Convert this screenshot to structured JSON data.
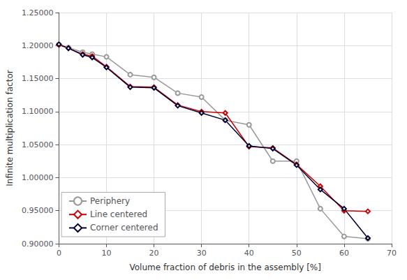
{
  "chart_data": {
    "type": "line",
    "xlabel": "Volume fraction of debris in the assembly [%]",
    "ylabel": "Infinite multiplication factor",
    "x": [
      0,
      2,
      5,
      7,
      10,
      15,
      20,
      25,
      30,
      35,
      40,
      45,
      50,
      55,
      60,
      65
    ],
    "series": [
      {
        "name": "Periphery",
        "color": "#999999",
        "marker": "circle",
        "values": [
          1.2015,
          1.197,
          1.19,
          1.187,
          1.183,
          1.156,
          1.152,
          1.128,
          1.122,
          1.087,
          1.08,
          1.025,
          1.025,
          0.953,
          0.911,
          0.9075
        ]
      },
      {
        "name": "Line centered",
        "color": "#cc0000",
        "marker": "diamond",
        "values": [
          1.201,
          1.196,
          1.187,
          1.184,
          1.168,
          1.138,
          1.137,
          1.11,
          1.1,
          1.098,
          1.047,
          1.045,
          1.02,
          0.987,
          0.95,
          0.949
        ]
      },
      {
        "name": "Corner centered",
        "color": "#000033",
        "marker": "diamond",
        "values": [
          1.202,
          1.196,
          1.186,
          1.182,
          1.167,
          1.137,
          1.136,
          1.109,
          1.098,
          1.087,
          1.048,
          1.044,
          1.019,
          0.982,
          0.953,
          0.9085
        ]
      }
    ],
    "xlim": [
      0,
      70
    ],
    "xticks": [
      0,
      10,
      20,
      30,
      40,
      50,
      60,
      70
    ],
    "ylim": [
      0.9,
      1.25
    ],
    "yticks": [
      {
        "value": 0.9,
        "label": "0.90000"
      },
      {
        "value": 0.95,
        "label": "0.95000"
      },
      {
        "value": 1.0,
        "label": "1.00000"
      },
      {
        "value": 1.05,
        "label": "1.05000"
      },
      {
        "value": 1.1,
        "label": "1.10000"
      },
      {
        "value": 1.15,
        "label": "1.15000"
      },
      {
        "value": 1.2,
        "label": "1.20000"
      },
      {
        "value": 1.25,
        "label": "1.25000"
      }
    ],
    "grid": true,
    "legend": "lower left"
  }
}
